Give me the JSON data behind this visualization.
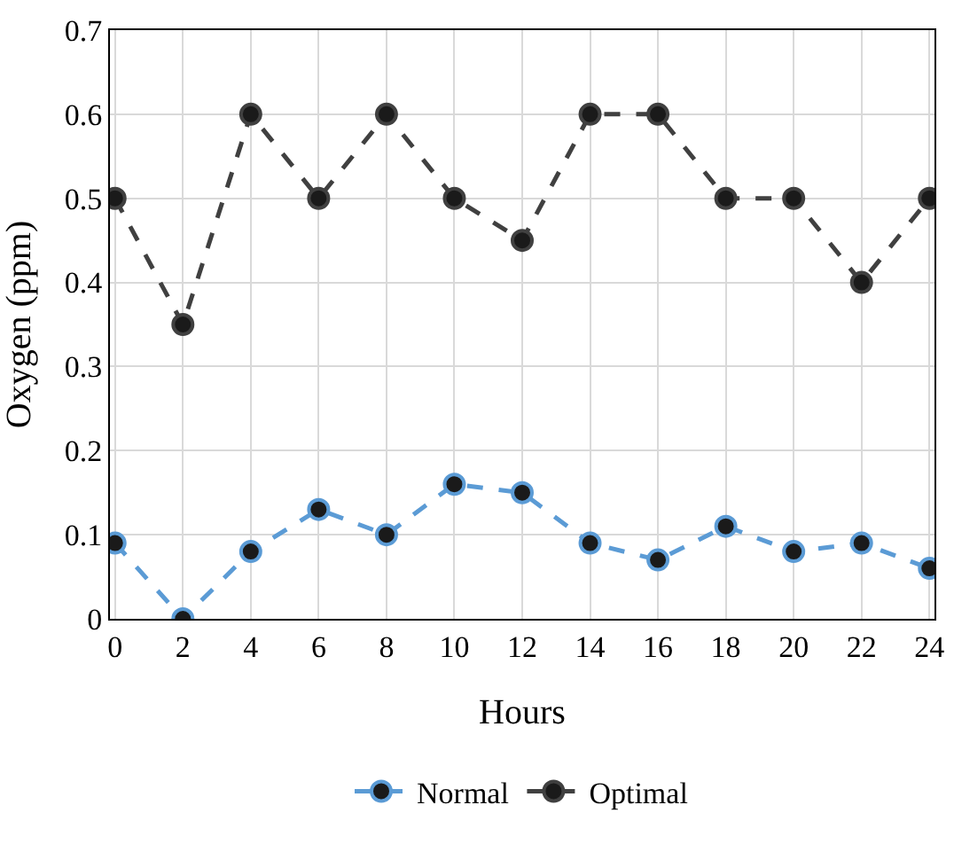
{
  "chart_data": {
    "type": "line",
    "xlabel": "Hours",
    "ylabel": "Oxygen (ppm)",
    "x": [
      0,
      2,
      4,
      6,
      8,
      10,
      12,
      14,
      16,
      18,
      20,
      22,
      24
    ],
    "series": [
      {
        "name": "Normal",
        "color": "#5b9bd5",
        "line_style": "dashed",
        "values": [
          0.09,
          0,
          0.08,
          0.13,
          0.1,
          0.16,
          0.15,
          0.09,
          0.07,
          0.11,
          0.08,
          0.09,
          0.06
        ]
      },
      {
        "name": "Optimal",
        "color": "#404040",
        "line_style": "dashed",
        "values": [
          0.5,
          0.35,
          0.6,
          0.5,
          0.6,
          0.5,
          0.45,
          0.6,
          0.6,
          0.5,
          0.5,
          0.4,
          0.5
        ]
      }
    ],
    "xlim": [
      -0.15,
      24.15
    ],
    "xticks": [
      0,
      2,
      4,
      6,
      8,
      10,
      12,
      14,
      16,
      18,
      20,
      22,
      24
    ],
    "ylim": [
      0,
      0.7
    ],
    "yticks": [
      0,
      0.1,
      0.2,
      0.3,
      0.4,
      0.5,
      0.6,
      0.7
    ],
    "grid": true,
    "legend": "bottom",
    "marker": "circle"
  }
}
